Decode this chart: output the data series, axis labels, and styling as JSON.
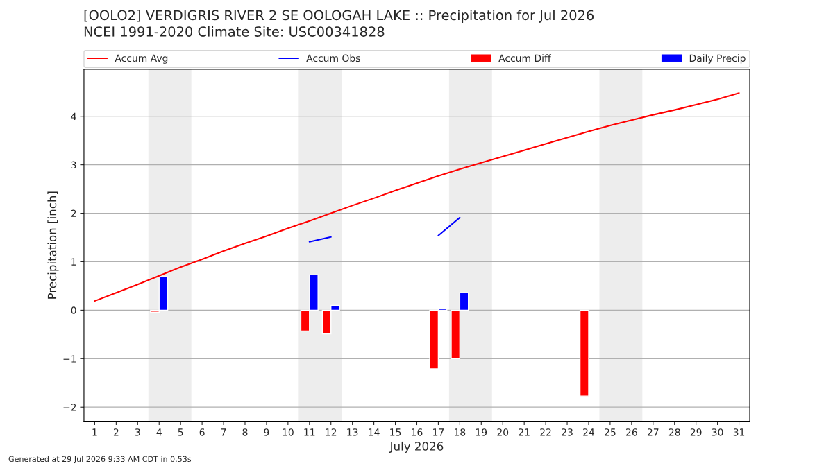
{
  "chart_data": {
    "type": "bar",
    "title": "[OOLO2] VERDIGRIS RIVER 2 SE OOLOGAH LAKE :: Precipitation for Jul 2026",
    "subtitle": "NCEI 1991-2020 Climate Site: USC00341828",
    "xlabel": "July 2026",
    "ylabel": "Precipitation [inch]",
    "x": [
      1,
      2,
      3,
      4,
      5,
      6,
      7,
      8,
      9,
      10,
      11,
      12,
      13,
      14,
      15,
      16,
      17,
      18,
      19,
      20,
      21,
      22,
      23,
      24,
      25,
      26,
      27,
      28,
      29,
      30,
      31
    ],
    "series": [
      {
        "name": "Accum Avg",
        "type": "line",
        "color": "#ff0000",
        "values": [
          0.19,
          0.36,
          0.53,
          0.71,
          0.89,
          1.05,
          1.22,
          1.38,
          1.53,
          1.69,
          1.84,
          2.0,
          2.16,
          2.31,
          2.47,
          2.62,
          2.77,
          2.91,
          3.04,
          3.17,
          3.3,
          3.43,
          3.56,
          3.69,
          3.81,
          3.92,
          4.03,
          4.13,
          4.24,
          4.35,
          4.48
        ]
      },
      {
        "name": "Accum Obs",
        "type": "line",
        "color": "#0000ff",
        "values": [
          null,
          null,
          null,
          null,
          null,
          null,
          null,
          null,
          null,
          null,
          1.41,
          1.51,
          null,
          null,
          null,
          null,
          1.54,
          1.91,
          null,
          null,
          null,
          null,
          null,
          null,
          null,
          null,
          null,
          null,
          null,
          null,
          null
        ]
      },
      {
        "name": "Accum Diff",
        "color": "#ff0000",
        "values": [
          null,
          null,
          null,
          -0.04,
          null,
          null,
          null,
          null,
          null,
          null,
          -0.43,
          -0.49,
          null,
          null,
          null,
          null,
          -1.21,
          -1.0,
          null,
          null,
          null,
          null,
          null,
          -1.77,
          null,
          null,
          null,
          null,
          null,
          null,
          null
        ]
      },
      {
        "name": "Daily Precip",
        "color": "#0000ff",
        "values": [
          null,
          null,
          null,
          0.69,
          null,
          null,
          null,
          null,
          null,
          null,
          0.73,
          0.1,
          null,
          null,
          null,
          null,
          0.04,
          0.36,
          null,
          null,
          null,
          null,
          null,
          null,
          null,
          null,
          null,
          null,
          null,
          null,
          null
        ]
      }
    ],
    "bands": [
      {
        "axis": "x",
        "from": 3.5,
        "to": 5.5,
        "color": "#ededed"
      },
      {
        "axis": "x",
        "from": 10.5,
        "to": 12.5,
        "color": "#ededed"
      },
      {
        "axis": "x",
        "from": 17.5,
        "to": 19.5,
        "color": "#ededed"
      },
      {
        "axis": "x",
        "from": 24.5,
        "to": 26.5,
        "color": "#ededed"
      }
    ],
    "xlim": [
      0.5,
      31.5
    ],
    "xticks": [
      1,
      2,
      3,
      4,
      5,
      6,
      7,
      8,
      9,
      10,
      11,
      12,
      13,
      14,
      15,
      16,
      17,
      18,
      19,
      20,
      21,
      22,
      23,
      24,
      25,
      26,
      27,
      28,
      29,
      30,
      31
    ],
    "ylim": [
      -2.29,
      4.97
    ],
    "yticks": [
      {
        "value": -2,
        "label": "−2"
      },
      {
        "value": -1,
        "label": "−1"
      },
      0,
      1,
      2,
      3,
      4
    ],
    "grid": "y",
    "legend": "top",
    "annotations": [
      "Generated at 29 Jul 2026 9:33 AM CDT in 0.53s"
    ]
  }
}
